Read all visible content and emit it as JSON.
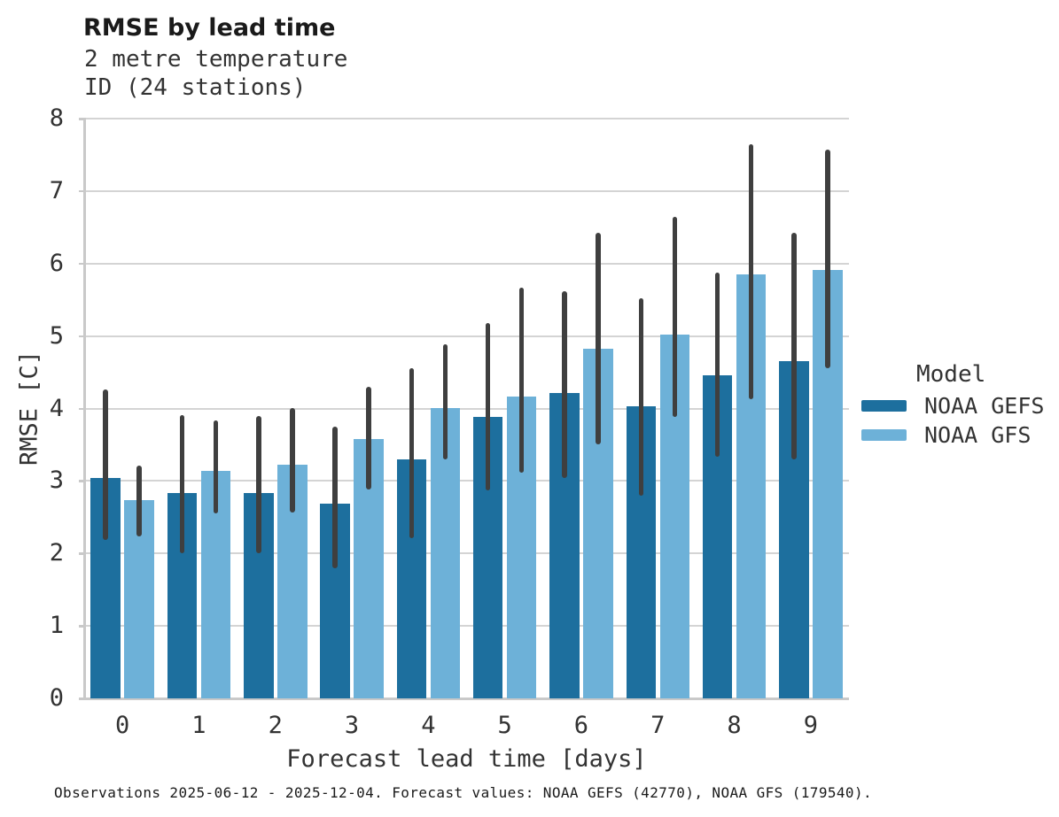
{
  "header": {
    "title": "RMSE by lead time",
    "subtitle1": "2 metre temperature",
    "subtitle2": "ID (24 stations)"
  },
  "chart_data": {
    "type": "bar",
    "title": "RMSE by lead time",
    "subtitle": [
      "2 metre temperature",
      "ID (24 stations)"
    ],
    "xlabel": "Forecast lead time [days]",
    "ylabel": "RMSE [C]",
    "categories": [
      "0",
      "1",
      "2",
      "3",
      "4",
      "5",
      "6",
      "7",
      "8",
      "9"
    ],
    "ylim": [
      0,
      8
    ],
    "yticks": [
      0,
      1,
      2,
      3,
      4,
      5,
      6,
      7,
      8
    ],
    "grid": true,
    "legend_title": "Model",
    "legend_position": "right-center",
    "error_bar_color": "#3f3f3f",
    "series": [
      {
        "name": "NOAA GEFS",
        "color": "#1d6f9e",
        "values": [
          3.04,
          2.83,
          2.83,
          2.69,
          3.3,
          3.89,
          4.21,
          4.03,
          4.46,
          4.65
        ],
        "err_low": [
          2.19,
          2.0,
          2.0,
          1.8,
          2.21,
          2.87,
          3.04,
          2.8,
          3.33,
          3.3
        ],
        "err_high": [
          4.26,
          3.91,
          3.9,
          3.75,
          4.56,
          5.18,
          5.62,
          5.52,
          5.87,
          6.42
        ]
      },
      {
        "name": "NOAA GFS",
        "color": "#6db1d8",
        "values": [
          2.74,
          3.14,
          3.23,
          3.58,
          4.01,
          4.17,
          4.82,
          5.02,
          5.85,
          5.91
        ],
        "err_low": [
          2.24,
          2.55,
          2.57,
          2.88,
          3.3,
          3.12,
          3.5,
          3.89,
          4.13,
          4.55
        ],
        "err_high": [
          3.21,
          3.83,
          4.01,
          4.3,
          4.88,
          5.67,
          6.42,
          6.65,
          7.65,
          7.57
        ]
      }
    ]
  },
  "footer": {
    "note": "Observations 2025-06-12 - 2025-12-04. Forecast values: NOAA GEFS (42770), NOAA GFS (179540)."
  },
  "colors": {
    "gefs": "#1d6f9e",
    "gfs": "#6db1d8",
    "error_bar": "#3f3f3f",
    "gridline": "#d4d4d4",
    "spine": "#c9c9c9",
    "text": "#333333"
  }
}
